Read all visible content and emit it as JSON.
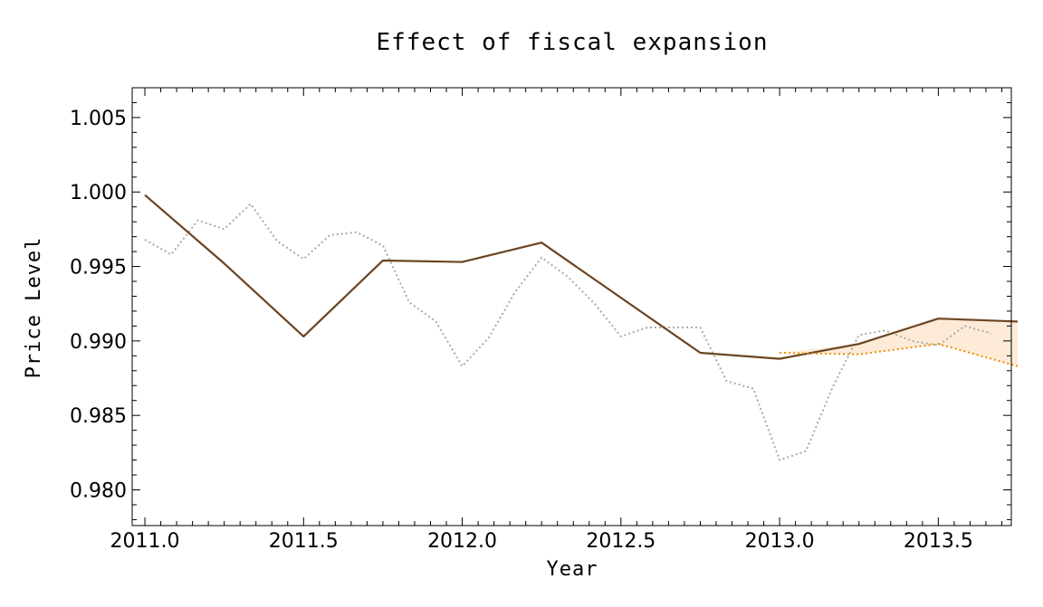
{
  "chart_data": {
    "type": "line",
    "title": "Effect of fiscal expansion",
    "xlabel": "Year",
    "ylabel": "Price Level",
    "xlim": [
      2010.96,
      2013.73
    ],
    "ylim": [
      0.9776,
      1.007
    ],
    "grid": false,
    "x_ticks": [
      2011.0,
      2011.5,
      2012.0,
      2012.5,
      2013.0,
      2013.5
    ],
    "x_tick_labels": [
      "2011.0",
      "2011.5",
      "2012.0",
      "2012.5",
      "2013.0",
      "2013.5"
    ],
    "y_ticks": [
      0.98,
      0.985,
      0.99,
      0.995,
      1.0,
      1.005
    ],
    "y_tick_labels": [
      "0.980",
      "0.985",
      "0.990",
      "0.995",
      "1.000",
      "1.005"
    ],
    "colors": {
      "actual": "#6b4420",
      "baseline": "#f08c00",
      "band": "#fdebd8",
      "monthly": "#aaaaaa"
    },
    "series": [
      {
        "style": "dotted",
        "color": "#aaaaaa",
        "x": [
          2011.0,
          2011.083,
          2011.167,
          2011.25,
          2011.333,
          2011.417,
          2011.5,
          2011.583,
          2011.667,
          2011.75,
          2011.833,
          2011.917,
          2012.0,
          2012.083,
          2012.167,
          2012.25,
          2012.333,
          2012.417,
          2012.5,
          2012.583,
          2012.667,
          2012.75,
          2012.833,
          2012.917,
          2013.0,
          2013.083,
          2013.167,
          2013.25,
          2013.333,
          2013.417,
          2013.5,
          2013.583,
          2013.667
        ],
        "values": [
          0.9968,
          0.9958,
          0.9981,
          0.9975,
          0.9992,
          0.9967,
          0.9955,
          0.9971,
          0.9973,
          0.9964,
          0.9926,
          0.9913,
          0.9883,
          0.9902,
          0.9933,
          0.9956,
          0.9943,
          0.9925,
          0.9903,
          0.9909,
          0.9909,
          0.9909,
          0.9873,
          0.9868,
          0.982,
          0.9826,
          0.9869,
          0.9904,
          0.9907,
          0.99,
          0.9897,
          0.991,
          0.9905
        ]
      },
      {
        "style": "solid",
        "color": "#6b4420",
        "x": [
          2011.0,
          2011.25,
          2011.5,
          2011.75,
          2012.0,
          2012.25,
          2012.5,
          2012.75,
          2013.0,
          2013.25,
          2013.5,
          2013.75
        ],
        "values": [
          0.9998,
          0.9952,
          0.9903,
          0.9954,
          0.9953,
          0.9966,
          0.9929,
          0.9892,
          0.9888,
          0.9898,
          0.9915,
          0.9913
        ]
      },
      {
        "style": "dotted",
        "color": "#f08c00",
        "x": [
          2013.0,
          2013.25,
          2013.5,
          2013.75
        ],
        "values": [
          0.9892,
          0.9891,
          0.9898,
          0.9883
        ]
      }
    ],
    "band": {
      "x": [
        2013.0,
        2013.25,
        2013.5,
        2013.75
      ],
      "upper": [
        0.9892,
        0.9898,
        0.9915,
        0.9913
      ],
      "lower": [
        0.9892,
        0.9891,
        0.9898,
        0.9883
      ]
    }
  }
}
